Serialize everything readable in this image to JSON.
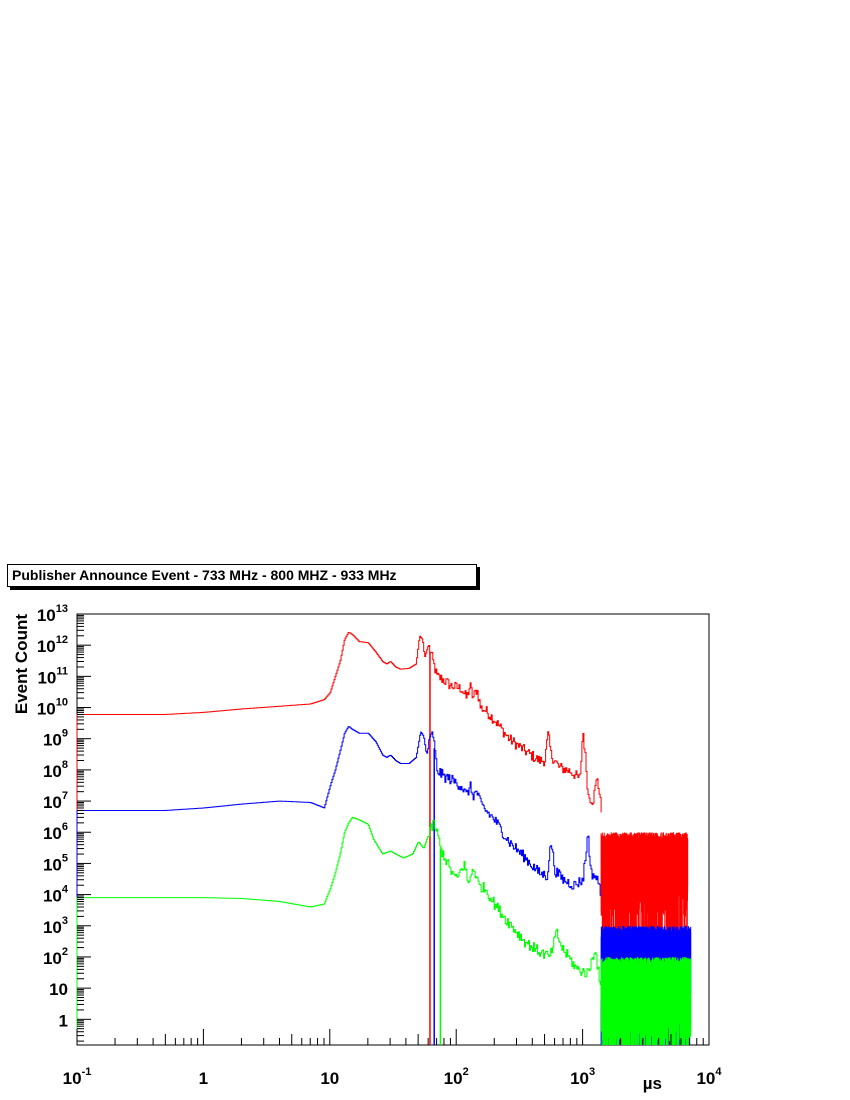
{
  "chart_data": {
    "type": "line",
    "title": "Publisher Announce Event - 733 MHz - 800 MHZ - 933 MHz",
    "xlabel": "µs",
    "ylabel": "Event Count",
    "xscale": "log",
    "yscale": "log",
    "xlim": [
      0.1,
      10000
    ],
    "ylim": [
      0.15,
      10000000000000.0
    ],
    "grid": false,
    "legend": "none",
    "x_ticks": [
      {
        "value": 0.1,
        "base": "10",
        "exp": "-1"
      },
      {
        "value": 1,
        "base": "1",
        "exp": ""
      },
      {
        "value": 10,
        "base": "10",
        "exp": ""
      },
      {
        "value": 100,
        "base": "10",
        "exp": "2"
      },
      {
        "value": 1000,
        "base": "10",
        "exp": "3"
      },
      {
        "value": 10000,
        "base": "10",
        "exp": "4"
      }
    ],
    "y_ticks": [
      {
        "value": 1,
        "base": "1",
        "exp": ""
      },
      {
        "value": 10,
        "base": "10",
        "exp": ""
      },
      {
        "value": 100,
        "base": "10",
        "exp": "2"
      },
      {
        "value": 1000,
        "base": "10",
        "exp": "3"
      },
      {
        "value": 10000,
        "base": "10",
        "exp": "4"
      },
      {
        "value": 100000,
        "base": "10",
        "exp": "5"
      },
      {
        "value": 1000000,
        "base": "10",
        "exp": "6"
      },
      {
        "value": 10000000,
        "base": "10",
        "exp": "7"
      },
      {
        "value": 100000000,
        "base": "10",
        "exp": "8"
      },
      {
        "value": 1000000000,
        "base": "10",
        "exp": "9"
      },
      {
        "value": 10000000000,
        "base": "10",
        "exp": "10"
      },
      {
        "value": 100000000000,
        "base": "10",
        "exp": "11"
      },
      {
        "value": 1000000000000,
        "base": "10",
        "exp": "12"
      },
      {
        "value": 10000000000000,
        "base": "10",
        "exp": "13"
      }
    ],
    "series": [
      {
        "color": "#ff0000",
        "cutoff_x": 62,
        "noise_range": [
          1400,
          6800
        ],
        "noise_max": 1000000.0,
        "points": [
          [
            0.1,
            6000000000.0
          ],
          [
            0.5,
            6000000000.0
          ],
          [
            1,
            7000000000.0
          ],
          [
            2,
            9000000000.0
          ],
          [
            4,
            11000000000.0
          ],
          [
            7,
            13000000000.0
          ],
          [
            9,
            18000000000.0
          ],
          [
            10,
            30000000000.0
          ],
          [
            11,
            100000000000.0
          ],
          [
            12,
            300000000000.0
          ],
          [
            13,
            1500000000000.0
          ],
          [
            14,
            2600000000000.0
          ],
          [
            15,
            2200000000000.0
          ],
          [
            17,
            1300000000000.0
          ],
          [
            20,
            1200000000000.0
          ],
          [
            23,
            600000000000.0
          ],
          [
            26,
            300000000000.0
          ],
          [
            28,
            250000000000.0
          ],
          [
            30,
            300000000000.0
          ],
          [
            33,
            200000000000.0
          ],
          [
            36,
            170000000000.0
          ],
          [
            42,
            180000000000.0
          ],
          [
            48,
            250000000000.0
          ],
          [
            51,
            2000000000000.0
          ],
          [
            54,
            1500000000000.0
          ],
          [
            56,
            400000000000.0
          ],
          [
            60,
            1000000000000.0
          ],
          [
            64,
            400000000000.0
          ],
          [
            70,
            100000000000.0
          ],
          [
            78,
            80000000000.0
          ],
          [
            90,
            50000000000.0
          ],
          [
            110,
            40000000000.0
          ],
          [
            120,
            20000000000.0
          ],
          [
            128,
            50000000000.0
          ],
          [
            135,
            20000000000.0
          ],
          [
            145,
            40000000000.0
          ],
          [
            155,
            10000000000.0
          ],
          [
            170,
            8000000000.0
          ],
          [
            200,
            4000000000.0
          ],
          [
            260,
            1000000000.0
          ],
          [
            350,
            400000000.0
          ],
          [
            450,
            200000000.0
          ],
          [
            500,
            200000000.0
          ],
          [
            530,
            1400000000.0
          ],
          [
            560,
            300000000.0
          ],
          [
            650,
            120000000.0
          ],
          [
            800,
            90000000.0
          ],
          [
            950,
            50000000.0
          ],
          [
            1000,
            2000000000.0
          ],
          [
            1050,
            200000000.0
          ],
          [
            1100,
            15000000.0
          ],
          [
            1200,
            10000000.0
          ],
          [
            1300,
            60000000.0
          ],
          [
            1400,
            5000000.0
          ]
        ]
      },
      {
        "color": "#0000ff",
        "cutoff_x": 67,
        "noise_range": [
          1400,
          7200
        ],
        "noise_max": 1000,
        "points": [
          [
            0.1,
            5000000.0
          ],
          [
            0.5,
            5000000.0
          ],
          [
            1,
            6000000.0
          ],
          [
            2,
            8000000.0
          ],
          [
            4,
            10000000.0
          ],
          [
            7,
            9000000.0
          ],
          [
            9,
            6000000.0
          ],
          [
            10,
            30000000.0
          ],
          [
            11,
            100000000.0
          ],
          [
            12,
            400000000.0
          ],
          [
            13,
            1500000000.0
          ],
          [
            14,
            2500000000.0
          ],
          [
            15,
            2000000000.0
          ],
          [
            17,
            1500000000.0
          ],
          [
            20,
            1500000000.0
          ],
          [
            23,
            800000000.0
          ],
          [
            26,
            300000000.0
          ],
          [
            28,
            250000000.0
          ],
          [
            30,
            300000000.0
          ],
          [
            33,
            200000000.0
          ],
          [
            36,
            160000000.0
          ],
          [
            42,
            160000000.0
          ],
          [
            48,
            250000000.0
          ],
          [
            52,
            1700000000.0
          ],
          [
            55,
            1200000000.0
          ],
          [
            58,
            300000000.0
          ],
          [
            62,
            1000000000.0
          ],
          [
            65,
            1500000000.0
          ],
          [
            70,
            100000000.0
          ],
          [
            80,
            60000000.0
          ],
          [
            90,
            50000000.0
          ],
          [
            110,
            30000000.0
          ],
          [
            120,
            15000000.0
          ],
          [
            128,
            30000000.0
          ],
          [
            135,
            15000000.0
          ],
          [
            145,
            20000000.0
          ],
          [
            155,
            8000000.0
          ],
          [
            170,
            5000000.0
          ],
          [
            200,
            2500000.0
          ],
          [
            260,
            500000.0
          ],
          [
            350,
            150000.0
          ],
          [
            450,
            50000.0
          ],
          [
            520,
            40000.0
          ],
          [
            560,
            500000.0
          ],
          [
            600,
            60000.0
          ],
          [
            700,
            30000.0
          ],
          [
            850,
            20000.0
          ],
          [
            1000,
            30000.0
          ],
          [
            1100,
            1000000.0
          ],
          [
            1150,
            50000.0
          ],
          [
            1250,
            40000.0
          ],
          [
            1350,
            20000.0
          ],
          [
            1400,
            10000.0
          ]
        ]
      },
      {
        "color": "#00ff00",
        "cutoff_x": 75,
        "noise_range": [
          1400,
          7200
        ],
        "noise_max": 100,
        "points": [
          [
            0.1,
            8000
          ],
          [
            0.5,
            8000
          ],
          [
            1,
            8000
          ],
          [
            2,
            7500
          ],
          [
            4,
            6000
          ],
          [
            7,
            4000
          ],
          [
            9,
            5000
          ],
          [
            10,
            15000.0
          ],
          [
            11,
            50000.0
          ],
          [
            12,
            200000.0
          ],
          [
            13,
            1000000.0
          ],
          [
            14,
            2000000.0
          ],
          [
            15,
            3000000.0
          ],
          [
            17,
            2500000.0
          ],
          [
            20,
            1800000.0
          ],
          [
            22,
            600000.0
          ],
          [
            26,
            200000.0
          ],
          [
            30,
            250000.0
          ],
          [
            33,
            200000.0
          ],
          [
            38,
            150000.0
          ],
          [
            45,
            200000.0
          ],
          [
            50,
            500000.0
          ],
          [
            55,
            300000.0
          ],
          [
            60,
            800000.0
          ],
          [
            66,
            2000000.0
          ],
          [
            70,
            1000000.0
          ],
          [
            75,
            300000.0
          ],
          [
            90,
            60000.0
          ],
          [
            100,
            30000.0
          ],
          [
            115,
            100000.0
          ],
          [
            125,
            20000.0
          ],
          [
            135,
            80000.0
          ],
          [
            150,
            20000.0
          ],
          [
            170,
            15000.0
          ],
          [
            200,
            5000
          ],
          [
            250,
            1500
          ],
          [
            350,
            300
          ],
          [
            450,
            150
          ],
          [
            550,
            100
          ],
          [
            620,
            600
          ],
          [
            680,
            200
          ],
          [
            800,
            80
          ],
          [
            900,
            40
          ],
          [
            1100,
            30
          ],
          [
            1250,
            200
          ],
          [
            1300,
            60
          ],
          [
            1400,
            5
          ]
        ]
      }
    ]
  }
}
